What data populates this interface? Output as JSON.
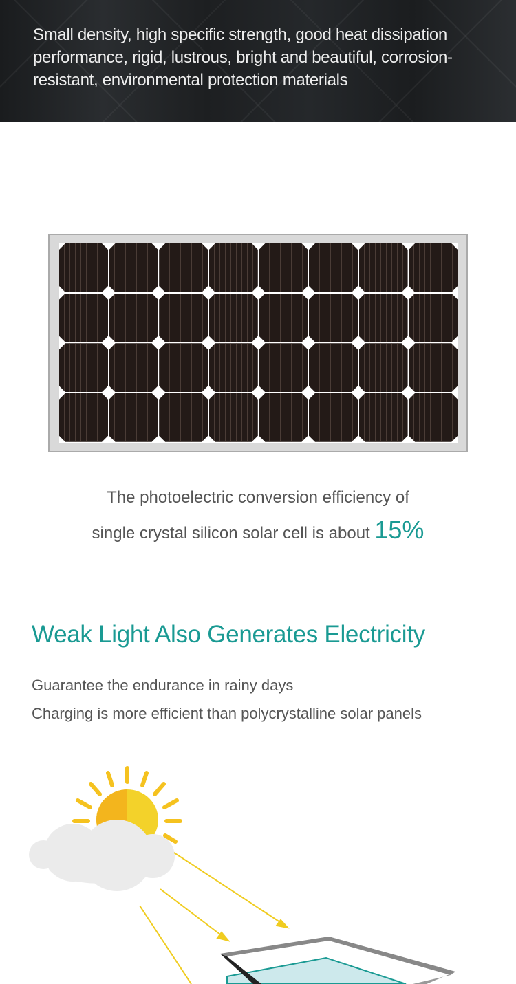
{
  "hero": {
    "text": "Small density, high specific strength, good heat dissipation performance, rigid, lustrous, bright and beautiful, corrosion-resistant, environmental protection materials"
  },
  "panel_image": {
    "icon": "solar-panel-icon",
    "columns": 8,
    "rows": 4
  },
  "efficiency": {
    "line1": "The photoelectric conversion efficiency of",
    "line2": "single crystal silicon solar cell is about",
    "value": "15%"
  },
  "weak_light": {
    "title": "Weak Light Also Generates Electricity",
    "lines": [
      "Guarantee the endurance in rainy days",
      "Charging is more efficient than polycrystalline solar panels"
    ]
  },
  "colors": {
    "accent": "#1a9a93",
    "sun": "#f5c21f"
  },
  "illustration": {
    "icon": "sun-cloud-panel-icon"
  }
}
